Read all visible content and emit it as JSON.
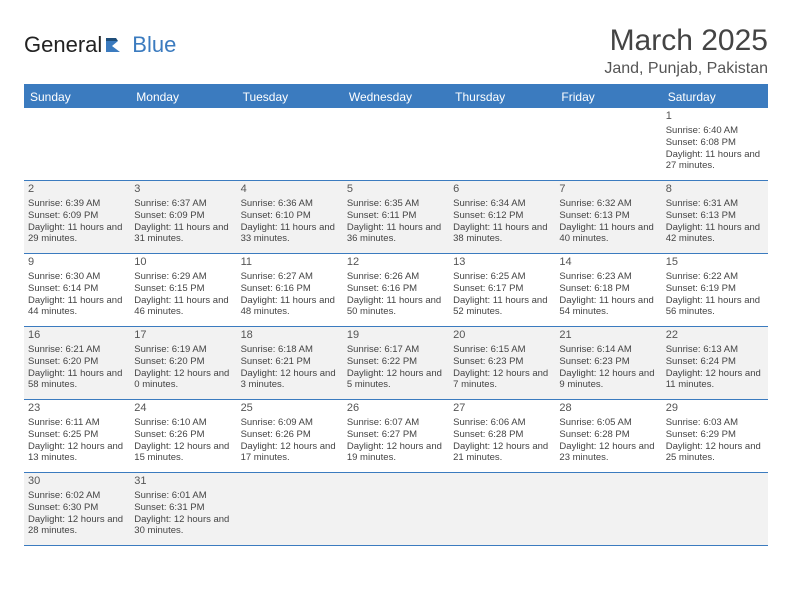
{
  "brand": {
    "part1": "General",
    "part2": "Blue"
  },
  "title": "March 2025",
  "location": "Jand, Punjab, Pakistan",
  "colors": {
    "header_bg": "#3b7bbf",
    "header_text": "#ffffff",
    "shade_bg": "#f2f2f2",
    "cell_bg": "#ffffff",
    "border": "#3b7bbf",
    "text": "#444444"
  },
  "day_names": [
    "Sunday",
    "Monday",
    "Tuesday",
    "Wednesday",
    "Thursday",
    "Friday",
    "Saturday"
  ],
  "layout": {
    "columns": 7,
    "rows": 6,
    "cell_font_size_pt": 7,
    "daynum_font_size_pt": 8,
    "header_font_size_pt": 9,
    "title_font_size_pt": 22,
    "location_font_size_pt": 12
  },
  "days": [
    {
      "n": "1",
      "sr": "6:40 AM",
      "ss": "6:08 PM",
      "dl": "11 hours and 27 minutes."
    },
    {
      "n": "2",
      "sr": "6:39 AM",
      "ss": "6:09 PM",
      "dl": "11 hours and 29 minutes."
    },
    {
      "n": "3",
      "sr": "6:37 AM",
      "ss": "6:09 PM",
      "dl": "11 hours and 31 minutes."
    },
    {
      "n": "4",
      "sr": "6:36 AM",
      "ss": "6:10 PM",
      "dl": "11 hours and 33 minutes."
    },
    {
      "n": "5",
      "sr": "6:35 AM",
      "ss": "6:11 PM",
      "dl": "11 hours and 36 minutes."
    },
    {
      "n": "6",
      "sr": "6:34 AM",
      "ss": "6:12 PM",
      "dl": "11 hours and 38 minutes."
    },
    {
      "n": "7",
      "sr": "6:32 AM",
      "ss": "6:13 PM",
      "dl": "11 hours and 40 minutes."
    },
    {
      "n": "8",
      "sr": "6:31 AM",
      "ss": "6:13 PM",
      "dl": "11 hours and 42 minutes."
    },
    {
      "n": "9",
      "sr": "6:30 AM",
      "ss": "6:14 PM",
      "dl": "11 hours and 44 minutes."
    },
    {
      "n": "10",
      "sr": "6:29 AM",
      "ss": "6:15 PM",
      "dl": "11 hours and 46 minutes."
    },
    {
      "n": "11",
      "sr": "6:27 AM",
      "ss": "6:16 PM",
      "dl": "11 hours and 48 minutes."
    },
    {
      "n": "12",
      "sr": "6:26 AM",
      "ss": "6:16 PM",
      "dl": "11 hours and 50 minutes."
    },
    {
      "n": "13",
      "sr": "6:25 AM",
      "ss": "6:17 PM",
      "dl": "11 hours and 52 minutes."
    },
    {
      "n": "14",
      "sr": "6:23 AM",
      "ss": "6:18 PM",
      "dl": "11 hours and 54 minutes."
    },
    {
      "n": "15",
      "sr": "6:22 AM",
      "ss": "6:19 PM",
      "dl": "11 hours and 56 minutes."
    },
    {
      "n": "16",
      "sr": "6:21 AM",
      "ss": "6:20 PM",
      "dl": "11 hours and 58 minutes."
    },
    {
      "n": "17",
      "sr": "6:19 AM",
      "ss": "6:20 PM",
      "dl": "12 hours and 0 minutes."
    },
    {
      "n": "18",
      "sr": "6:18 AM",
      "ss": "6:21 PM",
      "dl": "12 hours and 3 minutes."
    },
    {
      "n": "19",
      "sr": "6:17 AM",
      "ss": "6:22 PM",
      "dl": "12 hours and 5 minutes."
    },
    {
      "n": "20",
      "sr": "6:15 AM",
      "ss": "6:23 PM",
      "dl": "12 hours and 7 minutes."
    },
    {
      "n": "21",
      "sr": "6:14 AM",
      "ss": "6:23 PM",
      "dl": "12 hours and 9 minutes."
    },
    {
      "n": "22",
      "sr": "6:13 AM",
      "ss": "6:24 PM",
      "dl": "12 hours and 11 minutes."
    },
    {
      "n": "23",
      "sr": "6:11 AM",
      "ss": "6:25 PM",
      "dl": "12 hours and 13 minutes."
    },
    {
      "n": "24",
      "sr": "6:10 AM",
      "ss": "6:26 PM",
      "dl": "12 hours and 15 minutes."
    },
    {
      "n": "25",
      "sr": "6:09 AM",
      "ss": "6:26 PM",
      "dl": "12 hours and 17 minutes."
    },
    {
      "n": "26",
      "sr": "6:07 AM",
      "ss": "6:27 PM",
      "dl": "12 hours and 19 minutes."
    },
    {
      "n": "27",
      "sr": "6:06 AM",
      "ss": "6:28 PM",
      "dl": "12 hours and 21 minutes."
    },
    {
      "n": "28",
      "sr": "6:05 AM",
      "ss": "6:28 PM",
      "dl": "12 hours and 23 minutes."
    },
    {
      "n": "29",
      "sr": "6:03 AM",
      "ss": "6:29 PM",
      "dl": "12 hours and 25 minutes."
    },
    {
      "n": "30",
      "sr": "6:02 AM",
      "ss": "6:30 PM",
      "dl": "12 hours and 28 minutes."
    },
    {
      "n": "31",
      "sr": "6:01 AM",
      "ss": "6:31 PM",
      "dl": "12 hours and 30 minutes."
    }
  ],
  "first_weekday_index": 6,
  "labels": {
    "sunrise_prefix": "Sunrise: ",
    "sunset_prefix": "Sunset: ",
    "daylight_prefix": "Daylight: "
  }
}
